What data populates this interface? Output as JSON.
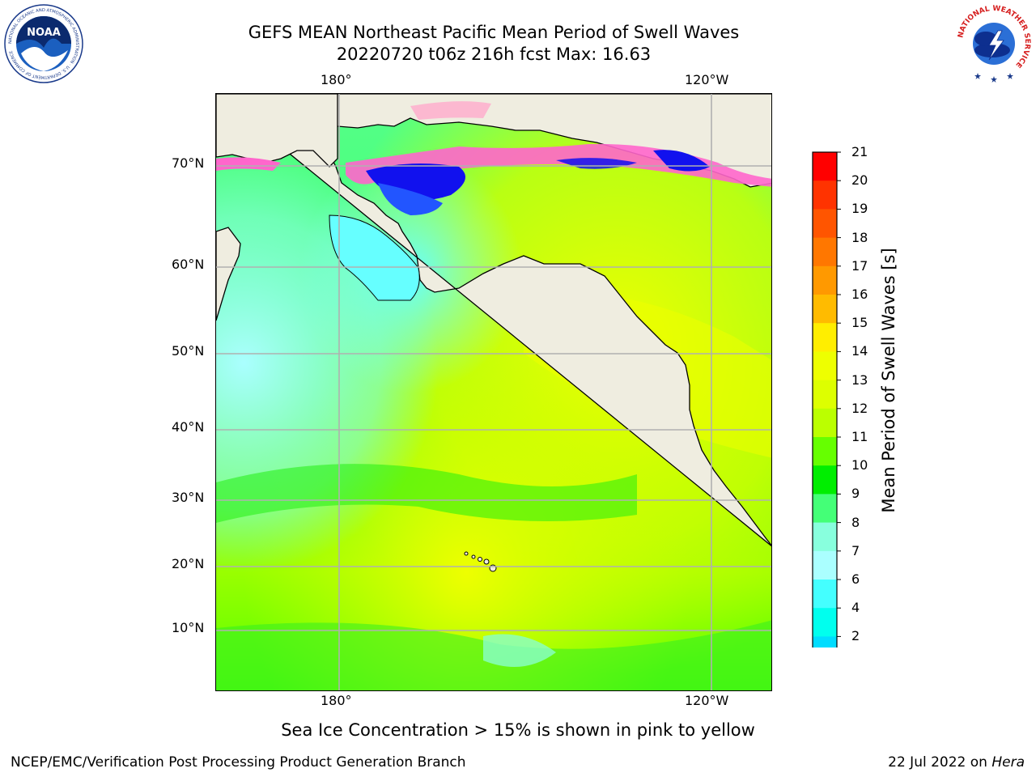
{
  "title_line1": "GEFS MEAN Northeast Pacific Mean Period of Swell Waves",
  "title_line2": "20220720 t06z 216h fcst   Max: 16.63",
  "top_x_labels": [
    "180°",
    "120°W"
  ],
  "bottom_x_labels": [
    "180°",
    "120°W"
  ],
  "y_labels": [
    "70°N",
    "60°N",
    "50°N",
    "40°N",
    "30°N",
    "20°N",
    "10°N"
  ],
  "colorbar": {
    "label": "Mean Period of Swell Waves [s]",
    "ticks": [
      "21",
      "20",
      "19",
      "18",
      "17",
      "16",
      "15",
      "14",
      "13",
      "12",
      "11",
      "10",
      "9",
      "8",
      "7",
      "6",
      "4",
      "2"
    ],
    "colors": [
      "#ff0000",
      "#ff3300",
      "#ff5500",
      "#ff7700",
      "#ff9900",
      "#ffbb00",
      "#ffee00",
      "#eeff00",
      "#ddff00",
      "#bbff00",
      "#66ff00",
      "#00ee00",
      "#44ff77",
      "#88ffdd",
      "#aaffff",
      "#44ffff",
      "#00ffee",
      "#00ddff",
      "#0077ff"
    ],
    "under_color": "#0000ee"
  },
  "subtitle": "Sea Ice Concentration > 15% is shown in pink to yellow",
  "footer_left": "NCEP/EMC/Verification Post Processing Product Generation Branch",
  "footer_right_date": "22 Jul 2022 on ",
  "footer_right_host": "Hera",
  "logos": {
    "noaa_text": "NOAA",
    "noaa_ring_text": "NATIONAL OCEANIC AND ATMOSPHERIC ADMINISTRATION · U.S. DEPARTMENT OF COMMERCE",
    "nws_ring_text": "NATIONAL WEATHER SERVICE"
  },
  "colors": {
    "land": "#efede0",
    "grid": "#b0b0b0",
    "ice_pink": "#ff66cc",
    "ice_blue": "#1111ee"
  }
}
